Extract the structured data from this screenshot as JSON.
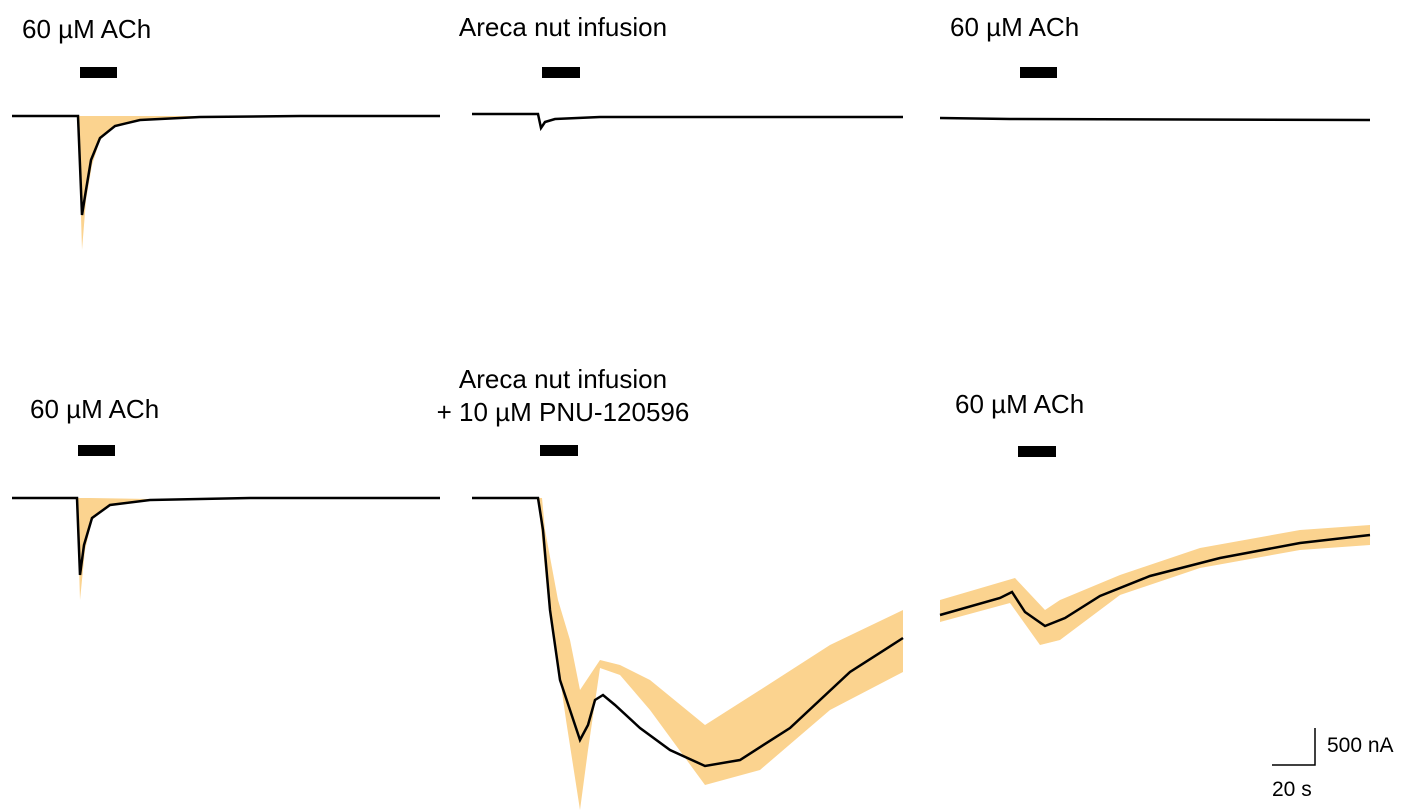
{
  "panels": [
    {
      "label": "60 µM ACh"
    },
    {
      "label": "Areca nut infusion"
    },
    {
      "label": "60 µM ACh"
    },
    {
      "label": "60 µM ACh"
    },
    {
      "label": "Areca nut infusion",
      "sublabel": "+ 10 µM PNU-120596"
    },
    {
      "label": "60 µM ACh"
    }
  ],
  "scale_bar": {
    "y_label": "500 nA",
    "x_label": "20 s"
  }
}
